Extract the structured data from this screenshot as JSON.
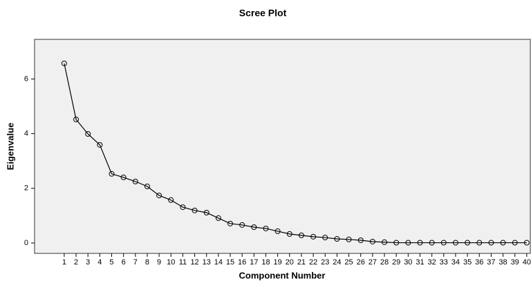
{
  "chart_data": {
    "type": "line",
    "title": "Scree Plot",
    "x_label": "Component Number",
    "y_label": "Eigenvalue",
    "x": [
      1,
      2,
      3,
      4,
      5,
      6,
      7,
      8,
      9,
      10,
      11,
      12,
      13,
      14,
      15,
      16,
      17,
      18,
      19,
      20,
      21,
      22,
      23,
      24,
      25,
      26,
      27,
      28,
      29,
      30,
      31,
      32,
      33,
      34,
      35,
      36,
      37,
      38,
      39,
      40
    ],
    "series": [
      {
        "color": "#000000",
        "values": [
          6.57,
          4.52,
          3.99,
          3.59,
          2.53,
          2.4,
          2.25,
          2.07,
          1.74,
          1.57,
          1.31,
          1.19,
          1.11,
          0.91,
          0.71,
          0.66,
          0.58,
          0.53,
          0.43,
          0.33,
          0.28,
          0.23,
          0.2,
          0.15,
          0.13,
          0.1,
          0.05,
          0.03,
          0.01,
          0.01,
          0.01,
          0.01,
          0.01,
          0.01,
          0.01,
          0.01,
          0.01,
          0.01,
          0.01,
          0.01
        ]
      }
    ],
    "xlim": [
      -1.5,
      40.3
    ],
    "ylim": [
      -0.38,
      7.45
    ],
    "xticks": [
      1,
      2,
      3,
      4,
      5,
      6,
      7,
      8,
      9,
      10,
      11,
      12,
      13,
      14,
      15,
      16,
      17,
      18,
      19,
      20,
      21,
      22,
      23,
      24,
      25,
      26,
      27,
      28,
      29,
      30,
      31,
      32,
      33,
      34,
      35,
      36,
      37,
      38,
      39,
      40
    ],
    "yticks": [
      0,
      2,
      4,
      6
    ]
  }
}
